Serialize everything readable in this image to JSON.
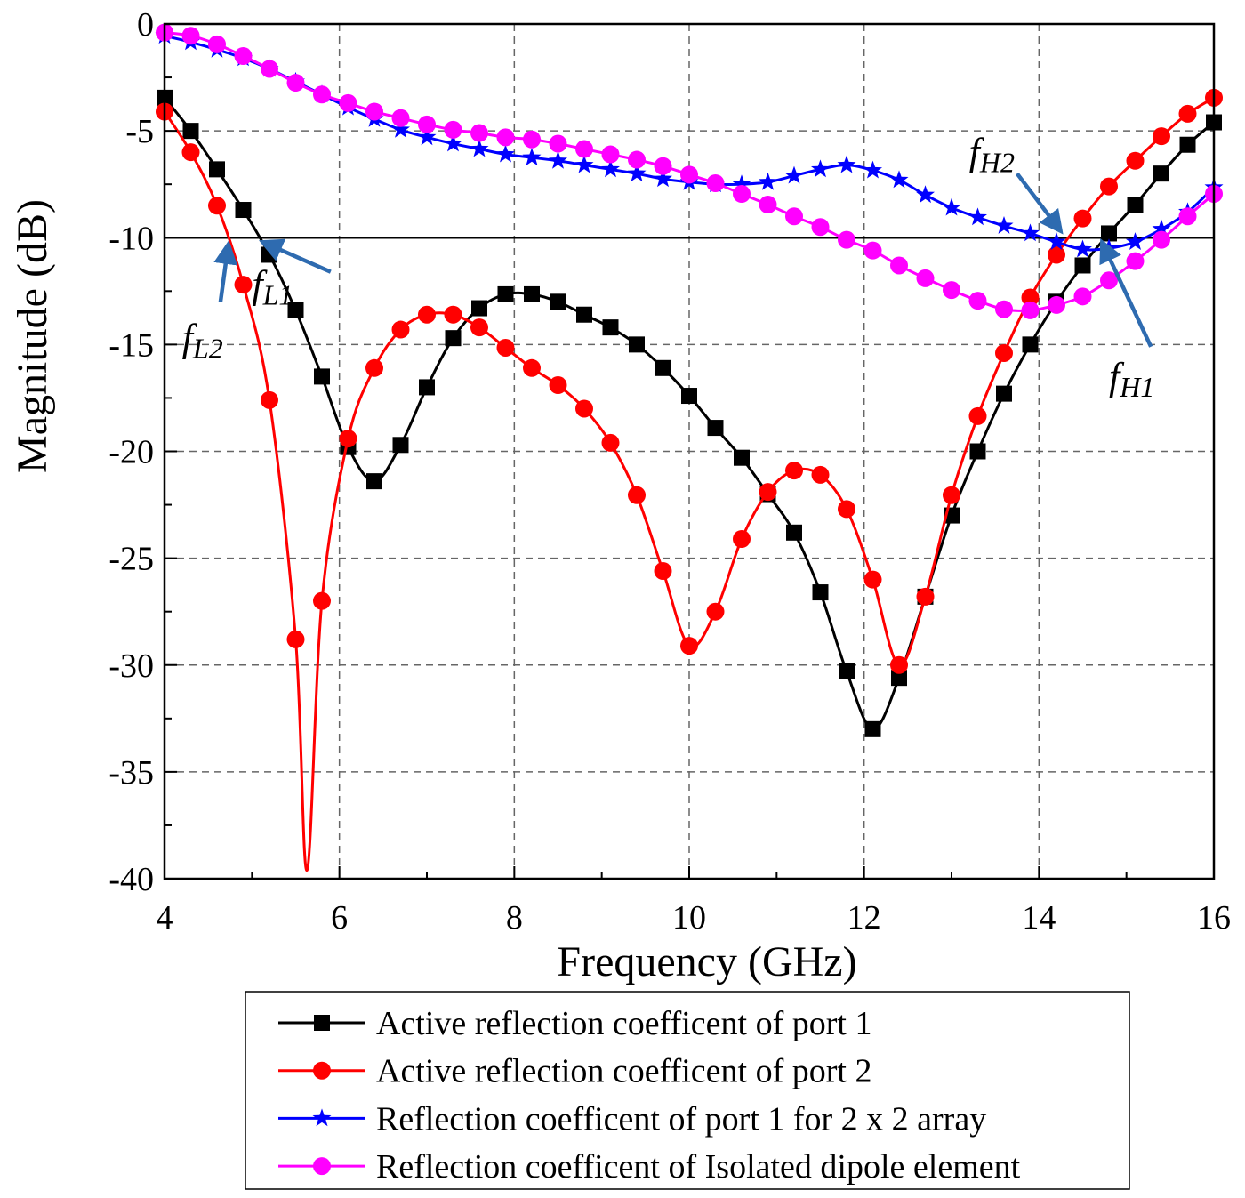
{
  "chart_data": {
    "type": "line",
    "title": "",
    "xlabel": "Frequency (GHz)",
    "ylabel": "Magnitude (dB)",
    "xlim": [
      4,
      16
    ],
    "ylim": [
      -40,
      0
    ],
    "xticks": [
      4,
      6,
      8,
      10,
      12,
      14,
      16
    ],
    "yticks": [
      0,
      -5,
      -10,
      -15,
      -20,
      -25,
      -30,
      -35,
      -40
    ],
    "grid": "dashed",
    "reference_line": -10,
    "legend_position": "bottom",
    "series": [
      {
        "name": "Active reflection coefficent of port 1",
        "color": "#000000",
        "marker": "square",
        "x": [
          4,
          4.3,
          4.6,
          4.9,
          5.2,
          5.5,
          5.8,
          6.1,
          6.4,
          6.7,
          7,
          7.3,
          7.6,
          7.9,
          8.2,
          8.5,
          8.8,
          9.1,
          9.4,
          9.7,
          10,
          10.3,
          10.6,
          10.9,
          11.2,
          11.5,
          11.8,
          12.1,
          12.4,
          12.7,
          13,
          13.3,
          13.6,
          13.9,
          14.2,
          14.5,
          14.8,
          15.1,
          15.4,
          15.7,
          16
        ],
        "y": [
          -3.45,
          -5.0,
          -6.8,
          -8.7,
          -10.8,
          -13.4,
          -16.5,
          -19.8,
          -21.4,
          -19.7,
          -17.0,
          -14.7,
          -13.3,
          -12.65,
          -12.65,
          -13.0,
          -13.6,
          -14.2,
          -15.0,
          -16.1,
          -17.4,
          -18.9,
          -20.3,
          -22.0,
          -23.8,
          -26.6,
          -30.3,
          -33.0,
          -30.6,
          -26.8,
          -23.0,
          -20.0,
          -17.3,
          -15.0,
          -13.0,
          -11.3,
          -9.8,
          -8.45,
          -7.0,
          -5.65,
          -4.6
        ]
      },
      {
        "name": "Active reflection coefficent of port 2",
        "color": "#ff0000",
        "marker": "circle",
        "x": [
          4,
          4.3,
          4.6,
          4.9,
          5.2,
          5.5,
          5.63,
          5.8,
          6.1,
          6.4,
          6.7,
          7,
          7.3,
          7.6,
          7.9,
          8.2,
          8.5,
          8.8,
          9.1,
          9.4,
          9.7,
          10,
          10.3,
          10.6,
          10.9,
          11.2,
          11.5,
          11.8,
          12.1,
          12.4,
          12.7,
          13,
          13.3,
          13.6,
          13.9,
          14.2,
          14.5,
          14.8,
          15.1,
          15.4,
          15.7,
          16
        ],
        "y": [
          -4.1,
          -6.0,
          -8.5,
          -12.2,
          -17.6,
          -28.8,
          -39.6,
          -27.0,
          -19.4,
          -16.1,
          -14.3,
          -13.6,
          -13.6,
          -14.2,
          -15.15,
          -16.1,
          -16.9,
          -18.0,
          -19.6,
          -22.05,
          -25.6,
          -29.1,
          -27.5,
          -24.1,
          -21.9,
          -20.9,
          -21.1,
          -22.7,
          -26.0,
          -30.0,
          -26.8,
          -22.05,
          -18.35,
          -15.4,
          -12.8,
          -10.8,
          -9.1,
          -7.6,
          -6.4,
          -5.25,
          -4.2,
          -3.45
        ]
      },
      {
        "name": "Reflection coefficent of port 1 for 2 x 2 array",
        "color": "#0000ff",
        "marker": "star",
        "x": [
          4,
          4.3,
          4.6,
          4.9,
          5.2,
          5.5,
          5.8,
          6.1,
          6.4,
          6.7,
          7,
          7.3,
          7.6,
          7.9,
          8.2,
          8.5,
          8.8,
          9.1,
          9.4,
          9.7,
          10,
          10.3,
          10.6,
          10.9,
          11.2,
          11.5,
          11.8,
          12.1,
          12.4,
          12.7,
          13,
          13.3,
          13.6,
          13.9,
          14.2,
          14.5,
          14.8,
          15.1,
          15.4,
          15.7,
          16
        ],
        "y": [
          -0.55,
          -0.85,
          -1.2,
          -1.6,
          -2.1,
          -2.7,
          -3.3,
          -3.9,
          -4.45,
          -4.95,
          -5.3,
          -5.6,
          -5.85,
          -6.1,
          -6.25,
          -6.4,
          -6.6,
          -6.8,
          -7.0,
          -7.25,
          -7.4,
          -7.5,
          -7.5,
          -7.4,
          -7.1,
          -6.8,
          -6.6,
          -6.85,
          -7.3,
          -8.0,
          -8.6,
          -9.05,
          -9.45,
          -9.8,
          -10.2,
          -10.55,
          -10.5,
          -10.2,
          -9.6,
          -8.8,
          -7.65
        ]
      },
      {
        "name": "Reflection coefficent of Isolated dipole element",
        "color": "#ff00ff",
        "marker": "circle",
        "x": [
          4,
          4.3,
          4.6,
          4.9,
          5.2,
          5.5,
          5.8,
          6.1,
          6.4,
          6.7,
          7,
          7.3,
          7.6,
          7.9,
          8.2,
          8.5,
          8.8,
          9.1,
          9.4,
          9.7,
          10,
          10.3,
          10.6,
          10.9,
          11.2,
          11.5,
          11.8,
          12.1,
          12.4,
          12.7,
          13,
          13.3,
          13.6,
          13.9,
          14.2,
          14.5,
          14.8,
          15.1,
          15.4,
          15.7,
          16
        ],
        "y": [
          -0.4,
          -0.55,
          -0.95,
          -1.5,
          -2.1,
          -2.75,
          -3.3,
          -3.7,
          -4.1,
          -4.4,
          -4.7,
          -4.95,
          -5.1,
          -5.3,
          -5.4,
          -5.6,
          -5.85,
          -6.1,
          -6.35,
          -6.65,
          -7.05,
          -7.45,
          -7.95,
          -8.45,
          -9.0,
          -9.5,
          -10.1,
          -10.6,
          -11.3,
          -11.9,
          -12.45,
          -12.95,
          -13.35,
          -13.4,
          -13.15,
          -12.75,
          -12.0,
          -11.1,
          -10.1,
          -9.0,
          -7.95
        ]
      }
    ],
    "annotations": [
      {
        "label": "f",
        "sub": "L1",
        "text_at": [
          5.0,
          -12.8
        ],
        "arrow_from": [
          5.9,
          -11.6
        ],
        "arrow_to": [
          5.12,
          -10.2
        ]
      },
      {
        "label": "f",
        "sub": "L2",
        "text_at": [
          4.2,
          -15.3
        ],
        "arrow_from": [
          4.64,
          -13.0
        ],
        "arrow_to": [
          4.73,
          -10.3
        ]
      },
      {
        "label": "f",
        "sub": "H2",
        "text_at": [
          13.2,
          -6.6
        ],
        "arrow_from": [
          13.75,
          -7.0
        ],
        "arrow_to": [
          14.25,
          -9.7
        ]
      },
      {
        "label": "f",
        "sub": "H1",
        "text_at": [
          14.8,
          -17.1
        ],
        "arrow_from": [
          15.28,
          -15.1
        ],
        "arrow_to": [
          14.72,
          -10.2
        ]
      }
    ]
  }
}
